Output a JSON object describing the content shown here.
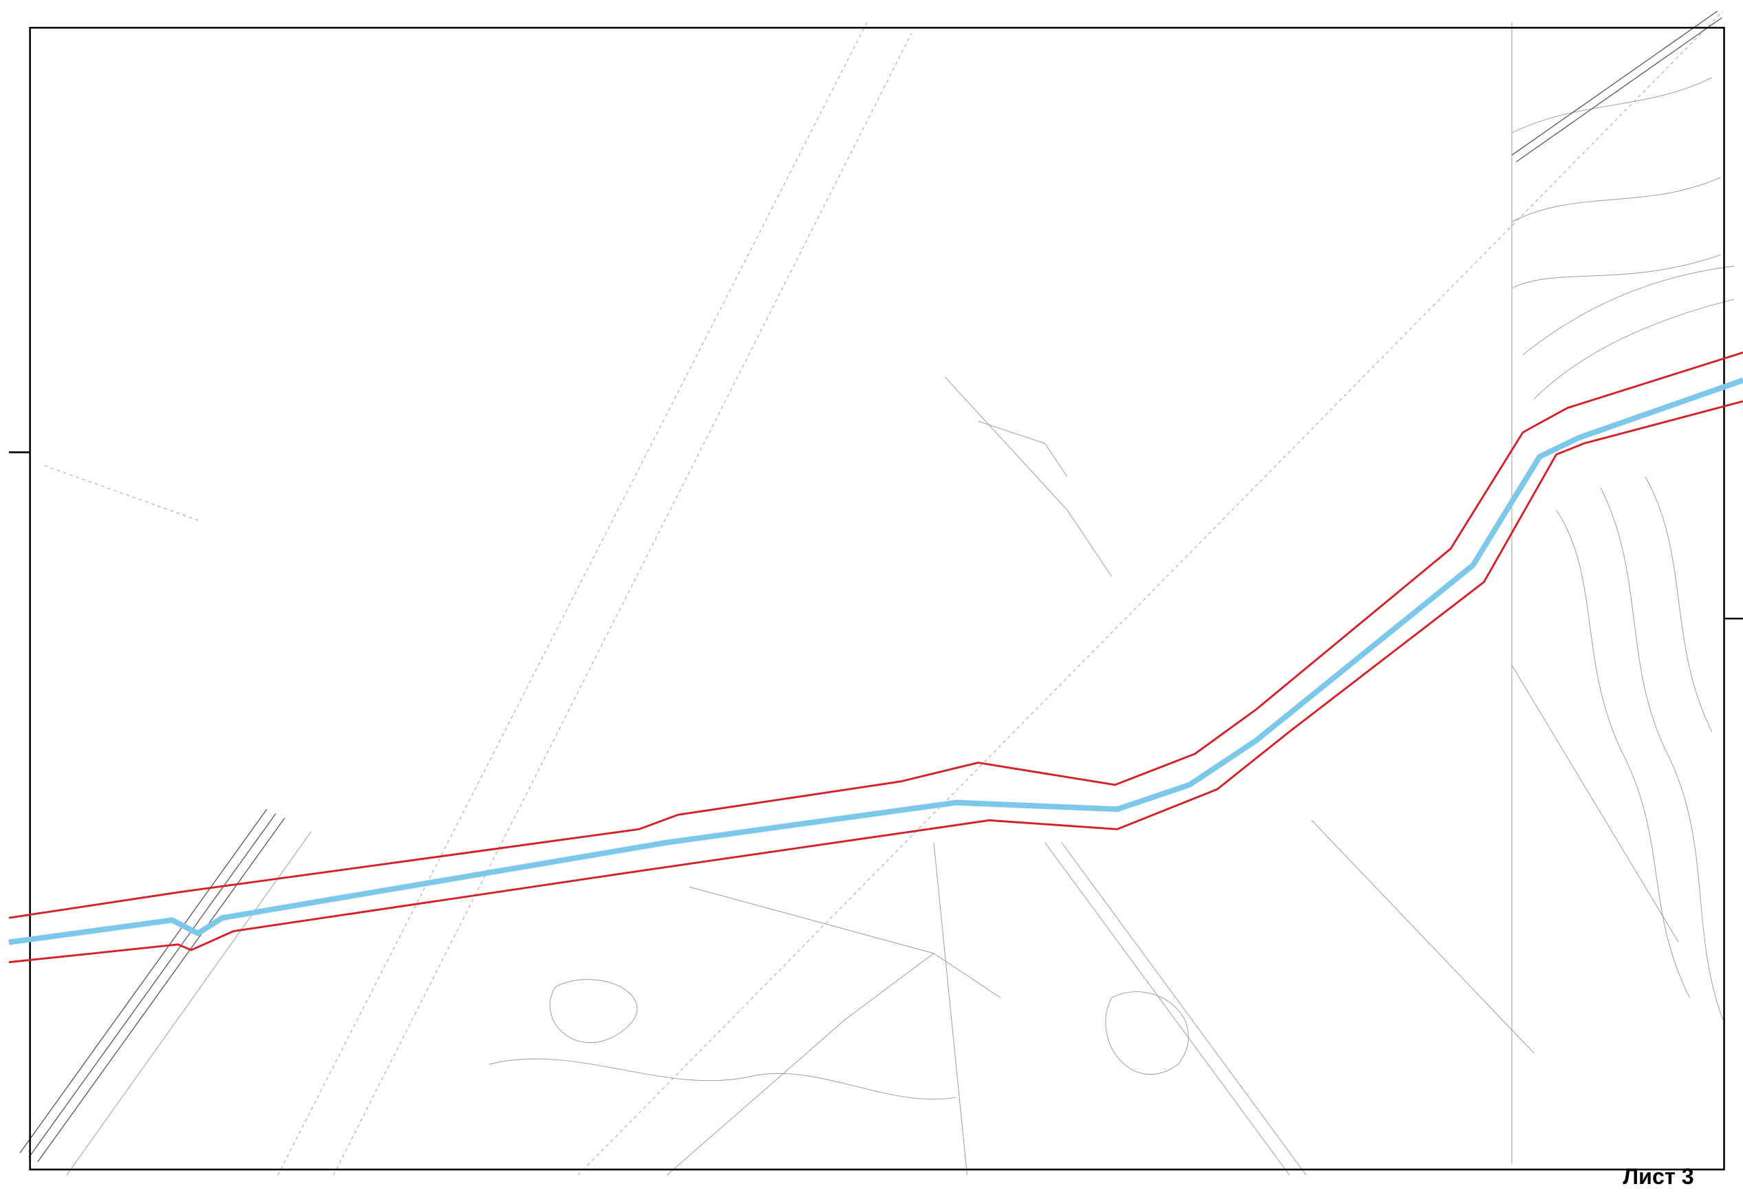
{
  "sheet_label": "Лист 3"
}
